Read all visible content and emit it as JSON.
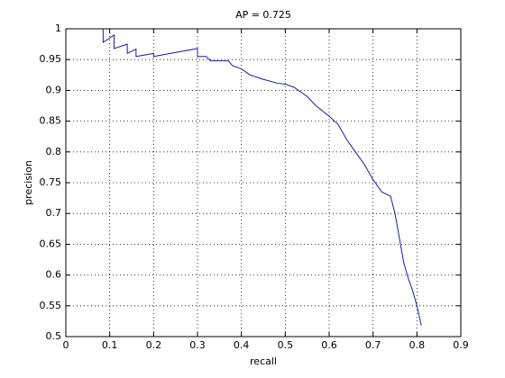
{
  "chart_data": {
    "type": "line",
    "title": "AP = 0.725",
    "x_label": "recall",
    "y_label": "precision",
    "x": [
      0.085,
      0.085,
      0.1,
      0.11,
      0.11,
      0.14,
      0.14,
      0.16,
      0.16,
      0.2,
      0.2,
      0.3,
      0.3,
      0.32,
      0.33,
      0.37,
      0.38,
      0.4,
      0.42,
      0.45,
      0.48,
      0.5,
      0.52,
      0.55,
      0.57,
      0.6,
      0.62,
      0.64,
      0.66,
      0.68,
      0.7,
      0.72,
      0.74,
      0.75,
      0.76,
      0.77,
      0.78,
      0.79,
      0.8,
      0.81
    ],
    "values": [
      1.0,
      0.978,
      0.985,
      0.99,
      0.968,
      0.975,
      0.96,
      0.967,
      0.955,
      0.96,
      0.955,
      0.968,
      0.955,
      0.955,
      0.948,
      0.948,
      0.94,
      0.935,
      0.925,
      0.918,
      0.912,
      0.91,
      0.905,
      0.89,
      0.875,
      0.858,
      0.845,
      0.82,
      0.8,
      0.78,
      0.755,
      0.735,
      0.728,
      0.7,
      0.66,
      0.62,
      0.595,
      0.575,
      0.55,
      0.518
    ],
    "color": "#1a1aa6",
    "xlim": [
      0,
      0.9
    ],
    "xticks": [
      0,
      0.1,
      0.2,
      0.3,
      0.4,
      0.5,
      0.6,
      0.7,
      0.8,
      0.9
    ],
    "ylim": [
      0.5,
      1
    ],
    "yticks": [
      0.5,
      0.55,
      0.6,
      0.65,
      0.7,
      0.75,
      0.8,
      0.85,
      0.9,
      0.95,
      1
    ],
    "grid": true
  }
}
